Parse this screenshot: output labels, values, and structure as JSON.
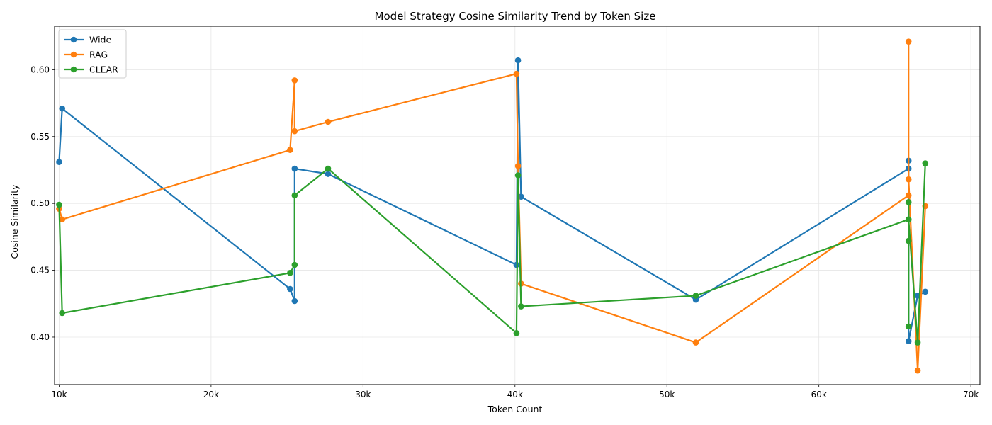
{
  "chart_data": {
    "type": "line",
    "title": "Model Strategy Cosine Similarity Trend by Token Size",
    "xlabel": "Token Count",
    "ylabel": "Cosine Similarity",
    "xlim": [
      9700,
      70600
    ],
    "ylim": [
      0.3645,
      0.6325
    ],
    "x_ticks": [
      10000,
      20000,
      30000,
      40000,
      50000,
      60000,
      70000
    ],
    "x_tick_labels": [
      "10k",
      "20k",
      "30k",
      "40k",
      "50k",
      "60k",
      "70k"
    ],
    "y_ticks": [
      0.4,
      0.45,
      0.5,
      0.55,
      0.6
    ],
    "y_tick_labels": [
      "0.40",
      "0.45",
      "0.50",
      "0.55",
      "0.60"
    ],
    "grid": true,
    "legend_position": "top-left",
    "series": [
      {
        "name": "Wide",
        "color": "#1f77b4",
        "x": [
          10000,
          10200,
          25200,
          25500,
          25500,
          27700,
          40100,
          40200,
          40400,
          51900,
          65900,
          65900,
          65900,
          66500,
          67000
        ],
        "y": [
          0.531,
          0.571,
          0.436,
          0.427,
          0.526,
          0.522,
          0.454,
          0.607,
          0.505,
          0.428,
          0.526,
          0.532,
          0.397,
          0.431,
          0.434
        ]
      },
      {
        "name": "RAG",
        "color": "#ff7f0e",
        "x": [
          10000,
          10200,
          25200,
          25500,
          25500,
          27700,
          40100,
          40200,
          40400,
          51900,
          65900,
          65900,
          65900,
          66500,
          67000
        ],
        "y": [
          0.496,
          0.488,
          0.54,
          0.592,
          0.554,
          0.561,
          0.597,
          0.528,
          0.44,
          0.396,
          0.506,
          0.621,
          0.518,
          0.375,
          0.498
        ]
      },
      {
        "name": "CLEAR",
        "color": "#2ca02c",
        "x": [
          10000,
          10200,
          25200,
          25500,
          25500,
          27700,
          40100,
          40200,
          40400,
          51900,
          65900,
          65900,
          65900,
          65900,
          65900,
          66500,
          67000
        ],
        "y": [
          0.499,
          0.418,
          0.448,
          0.454,
          0.506,
          0.526,
          0.403,
          0.521,
          0.423,
          0.431,
          0.488,
          0.501,
          0.408,
          0.472,
          0.488,
          0.396,
          0.53
        ]
      }
    ]
  }
}
